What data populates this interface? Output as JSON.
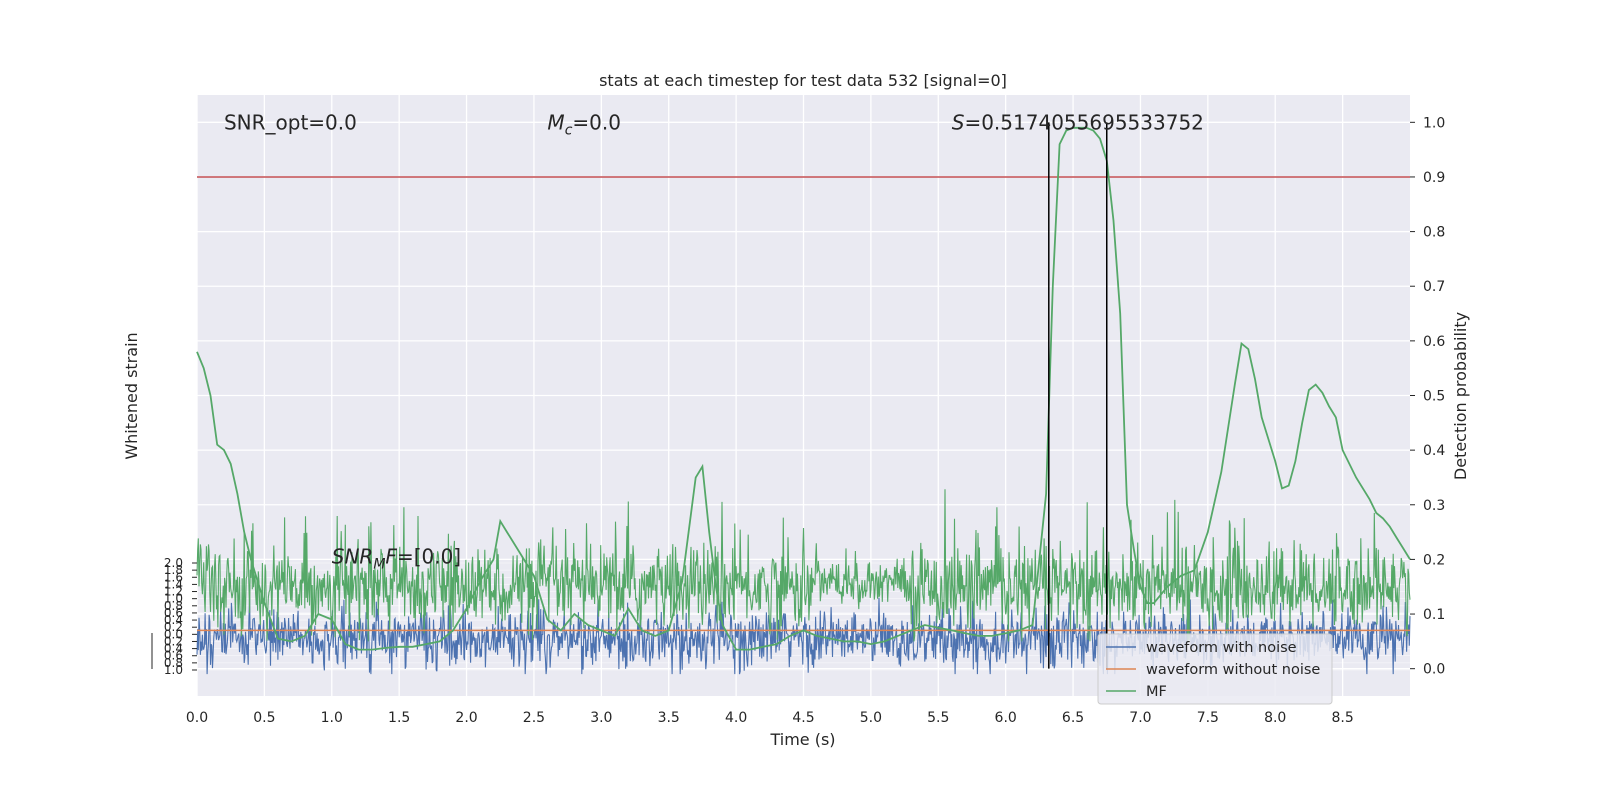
{
  "chart_data": {
    "type": "line",
    "title": "stats at each timestep for test data 532 [signal=0]",
    "xlabel": "Time (s)",
    "ylabel_left": "Whitened strain",
    "ylabel_right": "Detection probability",
    "xlim": [
      0,
      9.0
    ],
    "x_ticks": [
      "0.0",
      "0.5",
      "1.0",
      "1.5",
      "2.0",
      "2.5",
      "3.0",
      "3.5",
      "4.0",
      "4.5",
      "5.0",
      "5.5",
      "6.0",
      "6.5",
      "7.0",
      "7.5",
      "8.0",
      "8.5"
    ],
    "right_ylim": [
      -0.05,
      1.05
    ],
    "right_y_ticks": [
      "0.0",
      "0.1",
      "0.2",
      "0.3",
      "0.4",
      "0.5",
      "0.6",
      "0.7",
      "0.8",
      "0.9",
      "1.0"
    ],
    "left_y_ticks_crowded": [
      "1.0",
      "0.8",
      "0.6",
      "0.4",
      "0.2",
      "0.0",
      "0.2",
      "0.4",
      "0.6",
      "0.8",
      "1.0",
      "1.2",
      "1.4",
      "1.6",
      "1.8",
      "2.0"
    ],
    "grid": true,
    "legend_position": "lower-right",
    "series": [
      {
        "name": "waveform with noise",
        "color": "#4c72b0",
        "kind": "noise-trace",
        "value_range_prob_units": [
          0.0,
          0.12
        ]
      },
      {
        "name": "waveform without noise",
        "color": "#dd8452",
        "kind": "flat",
        "y_prob_units": 0.07
      },
      {
        "name": "MF",
        "color": "#55a868",
        "kind": "noise-trace",
        "value_range_prob_units": [
          0.05,
          0.34
        ]
      }
    ],
    "detection_probability": {
      "color": "#55a868",
      "x": [
        0.0,
        0.05,
        0.1,
        0.15,
        0.2,
        0.25,
        0.3,
        0.35,
        0.4,
        0.5,
        0.6,
        0.7,
        0.8,
        0.9,
        1.0,
        1.1,
        1.2,
        1.3,
        1.4,
        1.5,
        1.6,
        1.7,
        1.8,
        1.9,
        2.0,
        2.1,
        2.2,
        2.25,
        2.3,
        2.4,
        2.5,
        2.6,
        2.7,
        2.8,
        2.9,
        3.0,
        3.1,
        3.2,
        3.3,
        3.4,
        3.5,
        3.6,
        3.7,
        3.75,
        3.8,
        3.85,
        3.9,
        4.0,
        4.1,
        4.2,
        4.3,
        4.4,
        4.5,
        4.6,
        4.7,
        4.8,
        4.9,
        5.0,
        5.1,
        5.2,
        5.3,
        5.4,
        5.5,
        5.6,
        5.7,
        5.8,
        5.9,
        6.0,
        6.1,
        6.2,
        6.3,
        6.35,
        6.4,
        6.45,
        6.5,
        6.6,
        6.65,
        6.7,
        6.75,
        6.8,
        6.85,
        6.9,
        6.95,
        7.0,
        7.05,
        7.1,
        7.2,
        7.3,
        7.4,
        7.5,
        7.6,
        7.7,
        7.75,
        7.8,
        7.85,
        7.9,
        8.0,
        8.05,
        8.1,
        8.15,
        8.2,
        8.25,
        8.3,
        8.35,
        8.4,
        8.45,
        8.5,
        8.6,
        8.7,
        8.75,
        8.8,
        8.85,
        8.9,
        8.95,
        9.0
      ],
      "y": [
        0.58,
        0.55,
        0.5,
        0.41,
        0.4,
        0.375,
        0.32,
        0.25,
        0.2,
        0.12,
        0.055,
        0.05,
        0.06,
        0.1,
        0.09,
        0.045,
        0.035,
        0.035,
        0.038,
        0.04,
        0.04,
        0.045,
        0.05,
        0.07,
        0.11,
        0.16,
        0.2,
        0.27,
        0.25,
        0.21,
        0.17,
        0.09,
        0.07,
        0.1,
        0.08,
        0.07,
        0.06,
        0.11,
        0.07,
        0.06,
        0.07,
        0.16,
        0.35,
        0.37,
        0.25,
        0.15,
        0.08,
        0.035,
        0.035,
        0.04,
        0.045,
        0.06,
        0.07,
        0.06,
        0.055,
        0.05,
        0.05,
        0.045,
        0.05,
        0.06,
        0.07,
        0.08,
        0.075,
        0.07,
        0.065,
        0.06,
        0.06,
        0.065,
        0.07,
        0.08,
        0.32,
        0.7,
        0.96,
        0.985,
        0.99,
        0.99,
        0.985,
        0.97,
        0.93,
        0.82,
        0.65,
        0.3,
        0.22,
        0.15,
        0.12,
        0.12,
        0.15,
        0.17,
        0.18,
        0.25,
        0.36,
        0.52,
        0.595,
        0.585,
        0.53,
        0.46,
        0.38,
        0.33,
        0.335,
        0.38,
        0.45,
        0.51,
        0.52,
        0.505,
        0.48,
        0.46,
        0.4,
        0.35,
        0.31,
        0.285,
        0.275,
        0.26,
        0.24,
        0.22,
        0.2
      ]
    },
    "threshold_line": {
      "y": 0.9,
      "color": "#c44e52"
    },
    "vertical_lines": [
      6.32,
      6.75
    ],
    "annotations": [
      {
        "text": "SNR_opt=0.0",
        "x": 0.2,
        "y": 1.0
      },
      {
        "text_main": "M",
        "text_sub": "c",
        "text_rest": "=0.0",
        "x": 2.6,
        "y": 1.0
      },
      {
        "text_main": "S",
        "text_rest": "=0.5174055695533752",
        "x": 5.6,
        "y": 1.0
      },
      {
        "text_main": "SNR",
        "text_sub": "M",
        "text_mid": "F",
        "text_rest": "=[0.0]",
        "x": 1.0,
        "y": 0.205
      }
    ]
  }
}
